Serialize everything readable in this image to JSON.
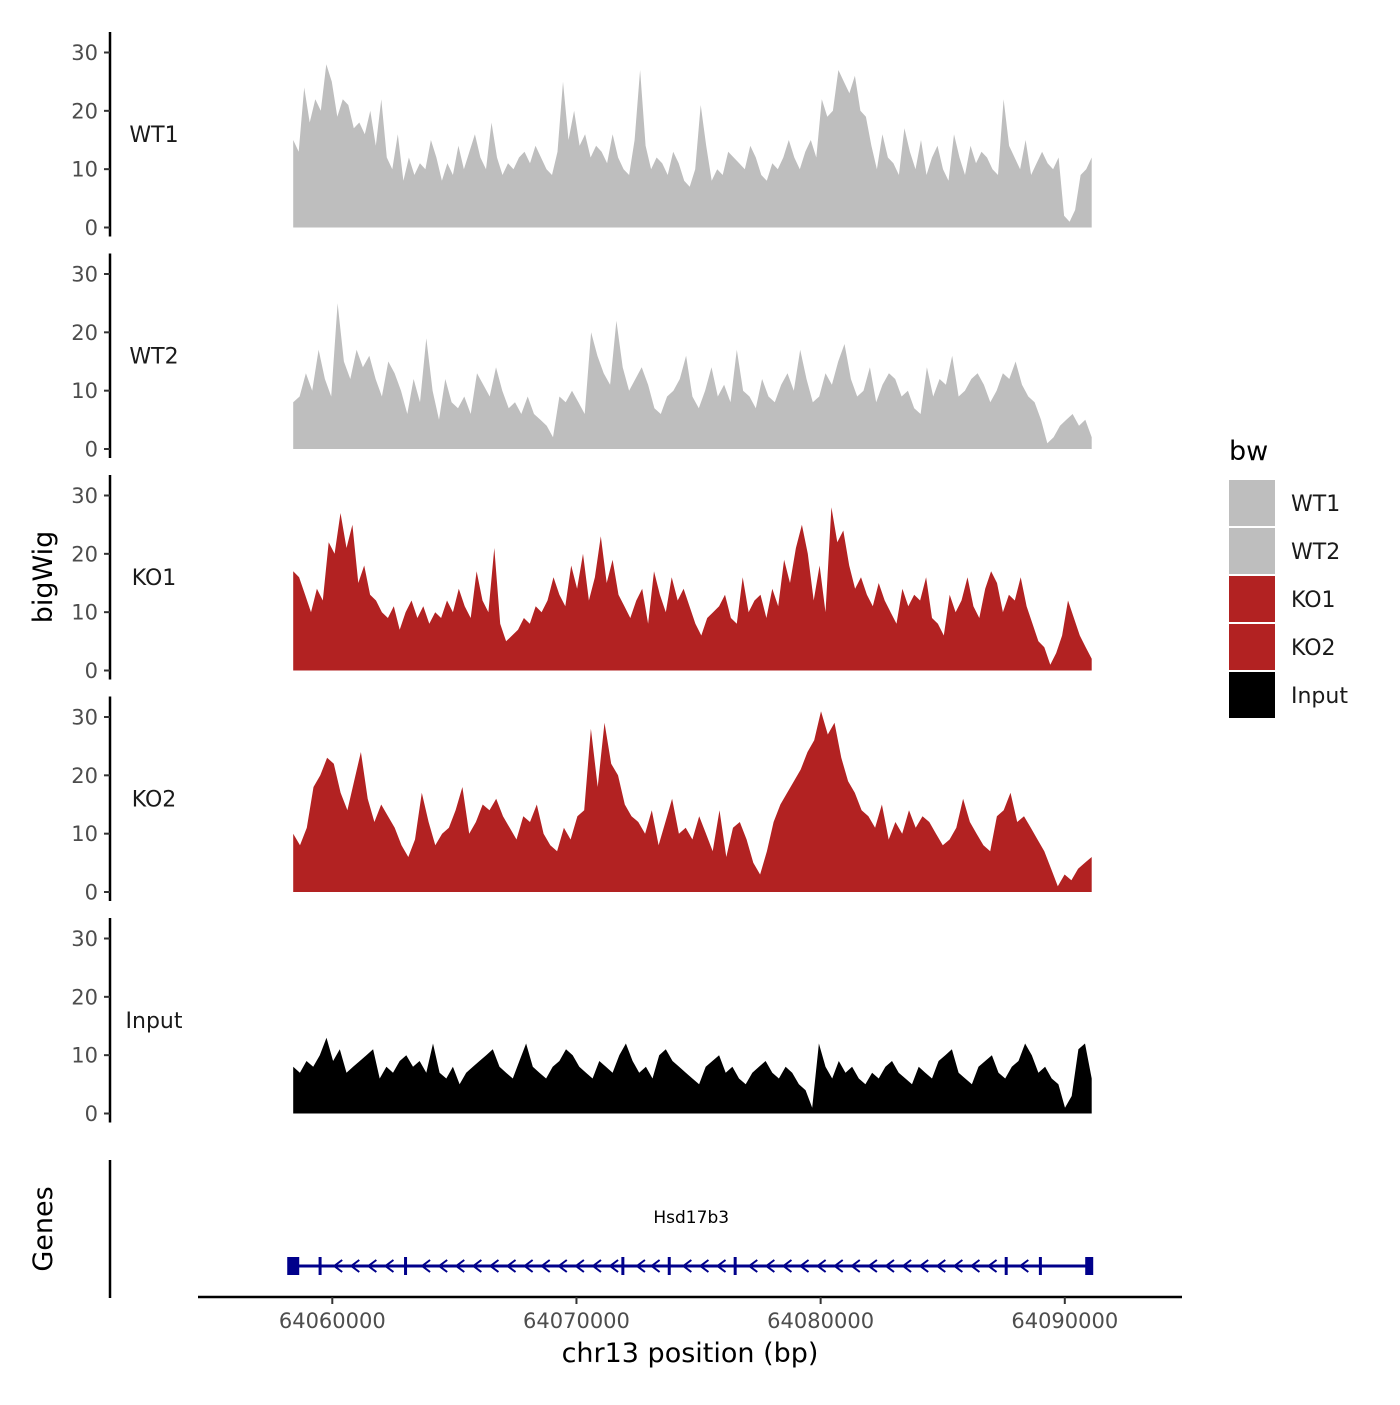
{
  "chart_data": {
    "type": "area",
    "title": "",
    "xlabel": "chr13 position (bp)",
    "ylabel": "bigWig",
    "genes_label": "Genes",
    "xlim": [
      64054500,
      64094800
    ],
    "x_ticks": [
      64060000,
      64070000,
      64080000,
      64090000
    ],
    "x_tick_labels": [
      "64060000",
      "64070000",
      "64080000",
      "64090000"
    ],
    "ylim": [
      0,
      33
    ],
    "y_ticks": [
      0,
      10,
      20,
      30
    ],
    "y_tick_labels": [
      "0",
      "10",
      "20",
      "30"
    ],
    "signal_start": 64058400,
    "signal_end": 64091100,
    "legend": {
      "title": "bw",
      "position": "right",
      "entries": [
        {
          "label": "WT1",
          "color": "#bebebe"
        },
        {
          "label": "WT2",
          "color": "#bebebe"
        },
        {
          "label": "KO1",
          "color": "#b22222"
        },
        {
          "label": "KO2",
          "color": "#b22222"
        },
        {
          "label": "Input",
          "color": "#000000"
        }
      ]
    },
    "series": [
      {
        "name": "WT1",
        "color": "#bebebe",
        "values": [
          15,
          13,
          24,
          18,
          22,
          20,
          28,
          25,
          19,
          22,
          21,
          17,
          18,
          16,
          20,
          14,
          22,
          12,
          10,
          16,
          8,
          12,
          9,
          11,
          10,
          15,
          12,
          8,
          11,
          9,
          14,
          10,
          13,
          16,
          12,
          10,
          18,
          12,
          9,
          11,
          10,
          12,
          13,
          11,
          14,
          12,
          10,
          9,
          13,
          25,
          15,
          20,
          14,
          16,
          12,
          14,
          13,
          11,
          16,
          12,
          10,
          9,
          15,
          27,
          14,
          10,
          12,
          11,
          9,
          13,
          11,
          8,
          7,
          10,
          21,
          14,
          8,
          10,
          9,
          13,
          12,
          11,
          10,
          14,
          12,
          9,
          8,
          11,
          10,
          12,
          15,
          12,
          10,
          13,
          15,
          12,
          22,
          19,
          20,
          27,
          25,
          23,
          26,
          20,
          19,
          14,
          10,
          16,
          12,
          11,
          9,
          17,
          13,
          10,
          15,
          9,
          12,
          14,
          10,
          8,
          16,
          12,
          9,
          14,
          11,
          13,
          12,
          10,
          9,
          22,
          14,
          12,
          10,
          15,
          9,
          11,
          13,
          11,
          10,
          12,
          2,
          1,
          3,
          9,
          10,
          12
        ]
      },
      {
        "name": "WT2",
        "color": "#bebebe",
        "values": [
          8,
          9,
          13,
          10,
          17,
          12,
          9,
          25,
          15,
          12,
          17,
          14,
          16,
          12,
          9,
          15,
          13,
          10,
          6,
          12,
          8,
          19,
          10,
          5,
          12,
          8,
          7,
          9,
          6,
          13,
          11,
          9,
          14,
          10,
          7,
          8,
          6,
          9,
          6,
          5,
          4,
          2,
          9,
          8,
          10,
          8,
          6,
          20,
          16,
          13,
          11,
          22,
          14,
          10,
          12,
          14,
          11,
          7,
          6,
          9,
          10,
          12,
          16,
          9,
          7,
          10,
          14,
          9,
          11,
          8,
          17,
          10,
          9,
          7,
          12,
          9,
          8,
          11,
          13,
          10,
          17,
          12,
          8,
          9,
          13,
          11,
          15,
          18,
          12,
          9,
          10,
          14,
          8,
          11,
          13,
          12,
          9,
          10,
          7,
          6,
          14,
          9,
          12,
          11,
          16,
          9,
          10,
          12,
          13,
          11,
          8,
          10,
          13,
          12,
          15,
          11,
          9,
          8,
          5,
          1,
          2,
          4,
          5,
          6,
          4,
          5,
          2
        ]
      },
      {
        "name": "KO1",
        "color": "#b22222",
        "values": [
          17,
          16,
          13,
          10,
          14,
          12,
          22,
          20,
          27,
          21,
          25,
          15,
          18,
          13,
          12,
          10,
          9,
          11,
          7,
          10,
          12,
          9,
          11,
          8,
          10,
          9,
          12,
          10,
          14,
          11,
          9,
          17,
          12,
          10,
          21,
          8,
          5,
          6,
          7,
          9,
          8,
          11,
          10,
          12,
          16,
          13,
          11,
          18,
          14,
          20,
          12,
          16,
          23,
          15,
          19,
          13,
          11,
          9,
          12,
          14,
          8,
          17,
          13,
          10,
          16,
          12,
          14,
          11,
          8,
          6,
          9,
          10,
          11,
          13,
          9,
          8,
          16,
          10,
          12,
          13,
          9,
          14,
          11,
          19,
          15,
          21,
          25,
          20,
          12,
          18,
          10,
          28,
          22,
          24,
          18,
          14,
          16,
          13,
          11,
          15,
          12,
          10,
          8,
          14,
          11,
          13,
          12,
          16,
          9,
          8,
          6,
          13,
          10,
          12,
          16,
          11,
          9,
          14,
          17,
          15,
          10,
          13,
          12,
          16,
          11,
          8,
          5,
          4,
          1,
          3,
          6,
          12,
          9,
          6,
          4,
          2
        ]
      },
      {
        "name": "KO2",
        "color": "#b22222",
        "values": [
          10,
          8,
          11,
          18,
          20,
          23,
          22,
          17,
          14,
          19,
          24,
          16,
          12,
          15,
          13,
          11,
          8,
          6,
          9,
          17,
          12,
          8,
          10,
          11,
          14,
          18,
          10,
          12,
          15,
          14,
          16,
          13,
          11,
          9,
          13,
          12,
          15,
          10,
          8,
          7,
          11,
          9,
          13,
          14,
          28,
          18,
          29,
          22,
          20,
          15,
          13,
          12,
          10,
          14,
          8,
          12,
          16,
          10,
          11,
          9,
          13,
          10,
          7,
          14,
          6,
          11,
          12,
          9,
          5,
          3,
          7,
          12,
          15,
          17,
          19,
          21,
          24,
          26,
          31,
          27,
          29,
          23,
          19,
          17,
          14,
          13,
          11,
          15,
          9,
          12,
          10,
          14,
          11,
          13,
          12,
          10,
          8,
          9,
          11,
          16,
          12,
          10,
          8,
          7,
          13,
          14,
          17,
          12,
          13,
          11,
          9,
          7,
          4,
          1,
          3,
          2,
          4,
          5,
          6
        ]
      },
      {
        "name": "Input",
        "color": "#000000",
        "values": [
          8,
          7,
          9,
          8,
          10,
          13,
          9,
          11,
          7,
          8,
          9,
          10,
          11,
          6,
          8,
          7,
          9,
          10,
          8,
          9,
          7,
          12,
          7,
          6,
          8,
          5,
          7,
          8,
          9,
          10,
          11,
          8,
          7,
          6,
          9,
          12,
          8,
          7,
          6,
          8,
          9,
          11,
          10,
          8,
          7,
          6,
          9,
          8,
          7,
          10,
          12,
          9,
          7,
          8,
          6,
          10,
          11,
          9,
          8,
          7,
          6,
          5,
          8,
          9,
          10,
          7,
          8,
          6,
          5,
          7,
          8,
          9,
          7,
          6,
          8,
          7,
          5,
          4,
          1,
          12,
          8,
          6,
          9,
          7,
          8,
          6,
          5,
          7,
          6,
          8,
          9,
          7,
          6,
          5,
          8,
          7,
          6,
          9,
          10,
          11,
          7,
          6,
          5,
          8,
          9,
          10,
          7,
          6,
          8,
          9,
          12,
          10,
          7,
          8,
          6,
          5,
          1,
          3,
          11,
          12,
          6
        ]
      }
    ],
    "gene_track": {
      "gene_name": "Hsd17b3",
      "start": 64058400,
      "end": 64091000,
      "strand": "-",
      "color": "#00008b",
      "exon_positions": [
        64058500,
        64059500,
        64063000,
        64071900,
        64073800,
        64076500,
        64087600,
        64089000
      ],
      "arrow_positions": [
        64060200,
        64060900,
        64061600,
        64062300,
        64063800,
        64064500,
        64065200,
        64065900,
        64066600,
        64067300,
        64068000,
        64068700,
        64069400,
        64070100,
        64070800,
        64071500,
        64072600,
        64073200,
        64074500,
        64075200,
        64075900,
        64077200,
        64077900,
        64078600,
        64079300,
        64080000,
        64080700,
        64081400,
        64082100,
        64082800,
        64083500,
        64084200,
        64084900,
        64085600,
        64086300,
        64087000,
        64088300
      ]
    }
  }
}
